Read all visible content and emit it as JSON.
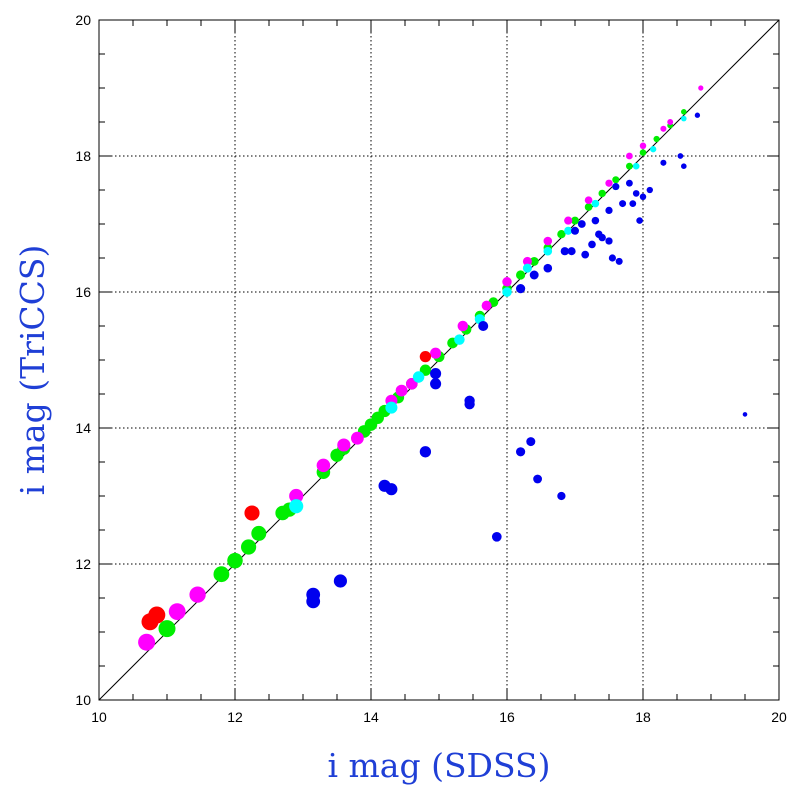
{
  "chart_data": {
    "type": "scatter",
    "title": "",
    "xlabel": "i mag (SDSS)",
    "ylabel": "i mag (TriCCS)",
    "xlim": [
      10,
      20
    ],
    "ylim": [
      10,
      20
    ],
    "xticks": [
      10,
      12,
      14,
      16,
      18,
      20
    ],
    "yticks": [
      10,
      12,
      14,
      16,
      18,
      20
    ],
    "xtick_labels": [
      "10",
      "12",
      "14",
      "16",
      "18",
      "20"
    ],
    "ytick_labels": [
      "10",
      "12",
      "14",
      "16",
      "18",
      "20"
    ],
    "grid": true,
    "reference_line": {
      "from": [
        10,
        10
      ],
      "to": [
        20,
        20
      ],
      "color": "#000000"
    },
    "colors": {
      "axis_title": "#1f3fd6",
      "red": "#ff0000",
      "magenta": "#ff00ff",
      "green": "#00ee00",
      "cyan": "#00ffff",
      "blue": "#0000ee"
    },
    "series": [
      {
        "color": "#00ee00",
        "points": [
          [
            11.0,
            11.05
          ],
          [
            11.8,
            11.85
          ],
          [
            12.0,
            12.05
          ],
          [
            12.2,
            12.25
          ],
          [
            12.35,
            12.45
          ],
          [
            12.7,
            12.75
          ],
          [
            12.8,
            12.8
          ],
          [
            13.3,
            13.35
          ],
          [
            13.5,
            13.6
          ],
          [
            13.6,
            13.7
          ],
          [
            13.9,
            13.95
          ],
          [
            14.0,
            14.05
          ],
          [
            14.1,
            14.15
          ],
          [
            14.2,
            14.25
          ],
          [
            14.4,
            14.45
          ],
          [
            14.6,
            14.65
          ],
          [
            14.8,
            14.85
          ],
          [
            15.0,
            15.05
          ],
          [
            15.2,
            15.25
          ],
          [
            15.4,
            15.45
          ],
          [
            15.6,
            15.65
          ],
          [
            15.8,
            15.85
          ],
          [
            16.0,
            16.05
          ],
          [
            16.2,
            16.25
          ],
          [
            16.4,
            16.45
          ],
          [
            16.6,
            16.65
          ],
          [
            16.8,
            16.85
          ],
          [
            17.0,
            17.05
          ],
          [
            17.2,
            17.25
          ],
          [
            17.4,
            17.45
          ],
          [
            17.6,
            17.65
          ],
          [
            17.8,
            17.85
          ],
          [
            18.0,
            18.05
          ],
          [
            18.2,
            18.25
          ],
          [
            18.4,
            18.45
          ],
          [
            18.6,
            18.65
          ]
        ]
      },
      {
        "color": "#ff00ff",
        "points": [
          [
            10.7,
            10.85
          ],
          [
            11.15,
            11.3
          ],
          [
            11.45,
            11.55
          ],
          [
            12.9,
            13.0
          ],
          [
            13.3,
            13.45
          ],
          [
            13.6,
            13.75
          ],
          [
            13.8,
            13.85
          ],
          [
            14.3,
            14.4
          ],
          [
            14.45,
            14.55
          ],
          [
            14.6,
            14.65
          ],
          [
            14.95,
            15.1
          ],
          [
            15.35,
            15.5
          ],
          [
            15.7,
            15.8
          ],
          [
            16.0,
            16.15
          ],
          [
            16.3,
            16.45
          ],
          [
            16.6,
            16.75
          ],
          [
            16.9,
            17.05
          ],
          [
            17.2,
            17.35
          ],
          [
            17.5,
            17.6
          ],
          [
            17.8,
            18.0
          ],
          [
            18.0,
            18.15
          ],
          [
            18.3,
            18.4
          ],
          [
            18.4,
            18.5
          ],
          [
            18.85,
            19.0
          ]
        ]
      },
      {
        "color": "#00ffff",
        "points": [
          [
            12.9,
            12.85
          ],
          [
            14.3,
            14.3
          ],
          [
            14.7,
            14.75
          ],
          [
            15.3,
            15.3
          ],
          [
            15.6,
            15.6
          ],
          [
            16.0,
            16.0
          ],
          [
            16.3,
            16.35
          ],
          [
            16.6,
            16.6
          ],
          [
            16.9,
            16.9
          ],
          [
            17.3,
            17.3
          ],
          [
            17.6,
            17.55
          ],
          [
            17.9,
            17.85
          ],
          [
            18.15,
            18.1
          ],
          [
            18.6,
            18.55
          ]
        ]
      },
      {
        "color": "#ff0000",
        "points": [
          [
            10.75,
            11.15
          ],
          [
            10.85,
            11.25
          ],
          [
            12.25,
            12.75
          ],
          [
            14.8,
            15.05
          ]
        ]
      },
      {
        "color": "#0000ee",
        "points": [
          [
            13.15,
            11.45
          ],
          [
            13.15,
            11.55
          ],
          [
            13.55,
            11.75
          ],
          [
            14.2,
            13.15
          ],
          [
            14.3,
            13.1
          ],
          [
            14.8,
            13.65
          ],
          [
            14.95,
            14.65
          ],
          [
            14.95,
            14.8
          ],
          [
            15.45,
            14.35
          ],
          [
            15.45,
            14.4
          ],
          [
            15.65,
            15.5
          ],
          [
            15.85,
            12.4
          ],
          [
            16.2,
            13.65
          ],
          [
            16.35,
            13.8
          ],
          [
            16.45,
            13.25
          ],
          [
            16.8,
            13.0
          ],
          [
            16.2,
            16.05
          ],
          [
            16.4,
            16.25
          ],
          [
            16.6,
            16.35
          ],
          [
            17.0,
            16.9
          ],
          [
            17.1,
            17.0
          ],
          [
            16.85,
            16.6
          ],
          [
            16.95,
            16.6
          ],
          [
            17.15,
            16.55
          ],
          [
            17.25,
            16.7
          ],
          [
            17.35,
            16.85
          ],
          [
            17.4,
            16.8
          ],
          [
            17.5,
            16.75
          ],
          [
            17.55,
            16.5
          ],
          [
            17.65,
            16.45
          ],
          [
            17.3,
            17.05
          ],
          [
            17.5,
            17.2
          ],
          [
            17.7,
            17.3
          ],
          [
            17.9,
            17.45
          ],
          [
            18.0,
            17.4
          ],
          [
            17.6,
            17.55
          ],
          [
            17.8,
            17.6
          ],
          [
            17.85,
            17.3
          ],
          [
            17.95,
            17.05
          ],
          [
            18.1,
            17.5
          ],
          [
            18.3,
            17.9
          ],
          [
            18.55,
            18.0
          ],
          [
            18.6,
            17.85
          ],
          [
            18.8,
            18.6
          ],
          [
            19.5,
            14.2
          ]
        ]
      }
    ]
  }
}
